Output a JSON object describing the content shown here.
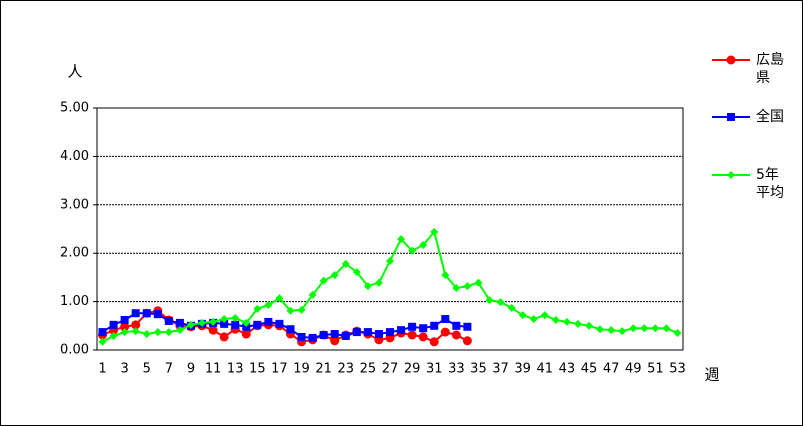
{
  "chart_data": {
    "type": "line",
    "y_label": "人",
    "x_label": "週",
    "categories": [
      1,
      null,
      3,
      null,
      5,
      null,
      7,
      null,
      9,
      null,
      11,
      null,
      13,
      null,
      15,
      null,
      17,
      null,
      19,
      null,
      21,
      null,
      23,
      null,
      25,
      null,
      27,
      null,
      29,
      null,
      31,
      null,
      33,
      null,
      35,
      null,
      37,
      null,
      39,
      null,
      41,
      null,
      43,
      null,
      45,
      null,
      47,
      null,
      49,
      null,
      51,
      null,
      53
    ],
    "ylim": [
      0,
      5
    ],
    "yticks": [
      {
        "value": 0,
        "label": "0.00"
      },
      {
        "value": 1,
        "label": "1.00"
      },
      {
        "value": 2,
        "label": "2.00"
      },
      {
        "value": 3,
        "label": "3.00"
      },
      {
        "value": 4,
        "label": "4.00"
      },
      {
        "value": 5,
        "label": "5.00"
      }
    ],
    "grid": true,
    "legend": "right",
    "series": [
      {
        "name": "広島県",
        "color": "#ff0000",
        "marker": "circle",
        "values": [
          0.31,
          0.41,
          0.48,
          0.52,
          0.76,
          0.81,
          0.62,
          0.5,
          0.48,
          0.5,
          0.41,
          0.27,
          0.43,
          0.33,
          0.5,
          0.52,
          0.5,
          0.33,
          0.17,
          0.21,
          0.31,
          0.19,
          0.31,
          0.39,
          0.33,
          0.21,
          0.25,
          0.35,
          0.31,
          0.27,
          0.17,
          0.37,
          0.31,
          0.19,
          null,
          null,
          null,
          null,
          null,
          null,
          null,
          null,
          null,
          null,
          null,
          null,
          null,
          null,
          null,
          null,
          null,
          null,
          null
        ]
      },
      {
        "name": "全国",
        "color": "#0000ff",
        "marker": "square",
        "values": [
          0.37,
          0.52,
          0.62,
          0.76,
          0.76,
          0.74,
          0.6,
          0.56,
          0.5,
          0.54,
          0.56,
          0.54,
          0.52,
          0.48,
          0.52,
          0.58,
          0.54,
          0.43,
          0.27,
          0.25,
          0.31,
          0.33,
          0.29,
          0.37,
          0.37,
          0.33,
          0.37,
          0.41,
          0.48,
          0.45,
          0.5,
          0.64,
          0.5,
          0.48,
          null,
          null,
          null,
          null,
          null,
          null,
          null,
          null,
          null,
          null,
          null,
          null,
          null,
          null,
          null,
          null,
          null,
          null,
          null
        ]
      },
      {
        "name": "5年平均",
        "color": "#00ff00",
        "marker": "diamond",
        "values": [
          0.17,
          0.29,
          0.37,
          0.39,
          0.33,
          0.37,
          0.37,
          0.41,
          0.52,
          0.56,
          0.58,
          0.64,
          0.66,
          0.56,
          0.85,
          0.93,
          1.07,
          0.81,
          0.83,
          1.14,
          1.43,
          1.55,
          1.78,
          1.61,
          1.32,
          1.39,
          1.84,
          2.29,
          2.05,
          2.17,
          2.44,
          1.55,
          1.28,
          1.32,
          1.39,
          1.03,
          0.99,
          0.87,
          0.72,
          0.64,
          0.72,
          0.62,
          0.58,
          0.54,
          0.5,
          0.43,
          0.41,
          0.39,
          0.45,
          0.45,
          0.45,
          0.45,
          0.35
        ]
      }
    ]
  }
}
